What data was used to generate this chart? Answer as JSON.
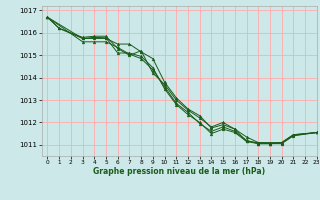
{
  "title": "",
  "xlabel": "Graphe pression niveau de la mer (hPa)",
  "background_color": "#cce8e8",
  "grid_color": "#ffaaaa",
  "line_color": "#1a5c1a",
  "xlim": [
    -0.5,
    23
  ],
  "ylim": [
    1010.5,
    1017.2
  ],
  "yticks": [
    1011,
    1012,
    1013,
    1014,
    1015,
    1016,
    1017
  ],
  "xticks": [
    0,
    1,
    2,
    3,
    4,
    5,
    6,
    7,
    8,
    9,
    10,
    11,
    12,
    13,
    14,
    15,
    16,
    17,
    18,
    19,
    20,
    21,
    22,
    23
  ],
  "series": [
    {
      "x": [
        0,
        1,
        3,
        4,
        5,
        6,
        7,
        8,
        9,
        10,
        11,
        12,
        13,
        14,
        15,
        16,
        17,
        18,
        19,
        20,
        21,
        23
      ],
      "y": [
        1016.7,
        1016.2,
        1015.8,
        1015.85,
        1015.85,
        1015.3,
        1015.0,
        1015.2,
        1014.2,
        1013.7,
        1013.0,
        1012.55,
        1012.2,
        1011.8,
        1012.0,
        1011.7,
        1011.15,
        1011.1,
        1011.05,
        1011.1,
        1011.45,
        1011.55
      ]
    },
    {
      "x": [
        0,
        1,
        3,
        4,
        5,
        6,
        7,
        8,
        9,
        10,
        11,
        12,
        13,
        14,
        15,
        16,
        17,
        18,
        19,
        20,
        21,
        23
      ],
      "y": [
        1016.7,
        1016.2,
        1015.75,
        1015.8,
        1015.78,
        1015.1,
        1015.1,
        1014.95,
        1014.45,
        1013.5,
        1012.8,
        1012.35,
        1012.0,
        1011.5,
        1011.7,
        1011.55,
        1011.15,
        1011.05,
        1011.05,
        1011.08,
        1011.42,
        1011.55
      ]
    },
    {
      "x": [
        0,
        3,
        4,
        5,
        6,
        7,
        8,
        9,
        10,
        11,
        12,
        13,
        14,
        15,
        16,
        17,
        18,
        19,
        20,
        21,
        23
      ],
      "y": [
        1016.7,
        1015.75,
        1015.75,
        1015.75,
        1015.5,
        1015.5,
        1015.15,
        1014.85,
        1013.8,
        1013.1,
        1012.6,
        1012.3,
        1011.75,
        1011.9,
        1011.7,
        1011.35,
        1011.1,
        1011.1,
        1011.1,
        1011.45,
        1011.55
      ]
    },
    {
      "x": [
        0,
        3,
        4,
        5,
        6,
        7,
        8,
        9,
        10,
        11,
        12,
        13,
        14,
        15,
        16,
        17,
        18,
        19,
        20,
        21,
        23
      ],
      "y": [
        1016.7,
        1015.6,
        1015.6,
        1015.6,
        1015.35,
        1015.05,
        1014.85,
        1014.35,
        1013.6,
        1012.85,
        1012.45,
        1011.95,
        1011.6,
        1011.8,
        1011.6,
        1011.2,
        1011.05,
        1011.05,
        1011.05,
        1011.4,
        1011.55
      ]
    }
  ]
}
